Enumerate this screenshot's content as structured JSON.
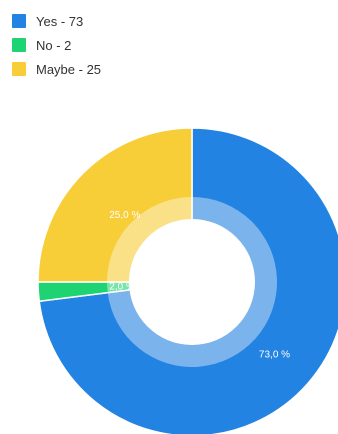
{
  "chart_data": {
    "type": "pie",
    "variant": "donut",
    "legend_position": "top-left",
    "slices": [
      {
        "legend": "Yes - 73",
        "label": "73,0 %",
        "value": 73,
        "color": "#2383e2"
      },
      {
        "legend": "No - 2",
        "label": "2,0 %",
        "value": 2,
        "color": "#1ed371"
      },
      {
        "legend": "Maybe - 25",
        "label": "25,0 %",
        "value": 25,
        "color": "#f7cd38"
      }
    ]
  }
}
